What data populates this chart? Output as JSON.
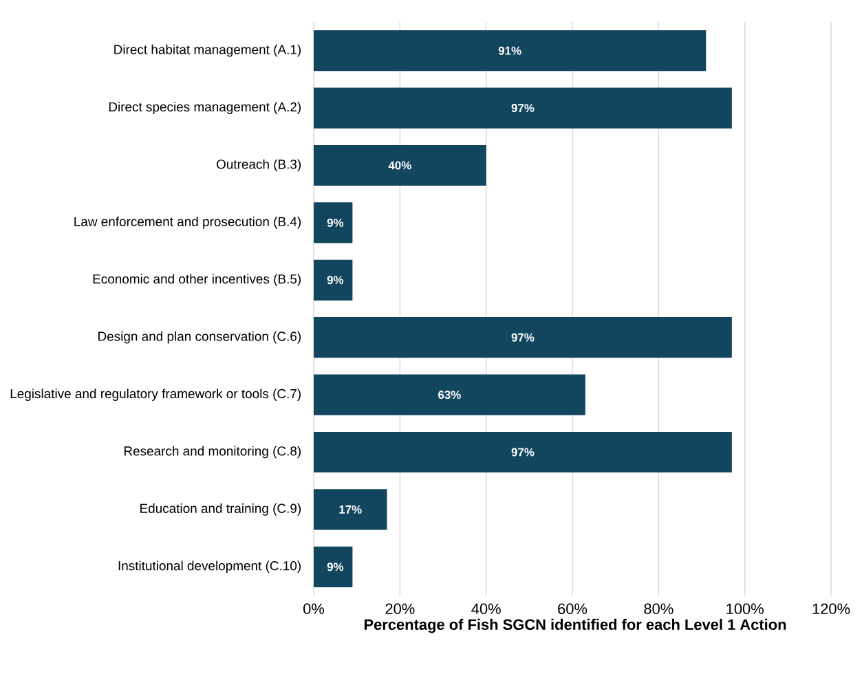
{
  "chart_data": {
    "type": "bar",
    "orientation": "horizontal",
    "categories": [
      "Direct habitat management (A.1)",
      "Direct species management (A.2)",
      "Outreach (B.3)",
      "Law enforcement and prosecution (B.4)",
      "Economic and other incentives (B.5)",
      "Design and plan conservation (C.6)",
      "Legislative and regulatory framework or tools (C.7)",
      "Research and monitoring (C.8)",
      "Education and training (C.9)",
      "Institutional development (C.10)"
    ],
    "values": [
      91,
      97,
      40,
      9,
      9,
      97,
      63,
      97,
      17,
      9
    ],
    "value_labels": [
      "91%",
      "97%",
      "40%",
      "9%",
      "9%",
      "97%",
      "63%",
      "97%",
      "17%",
      "9%"
    ],
    "color": "#12465e",
    "xlabel": "Percentage of Fish SGCN identified for each Level 1 Action",
    "xlim": [
      0,
      120
    ],
    "xticks": [
      {
        "value": 0,
        "label": "0%"
      },
      {
        "value": 20,
        "label": "20%"
      },
      {
        "value": 40,
        "label": "40%"
      },
      {
        "value": 60,
        "label": "60%"
      },
      {
        "value": 80,
        "label": "80%"
      },
      {
        "value": 100,
        "label": "100%"
      },
      {
        "value": 120,
        "label": "120%"
      }
    ],
    "grid": "x"
  }
}
